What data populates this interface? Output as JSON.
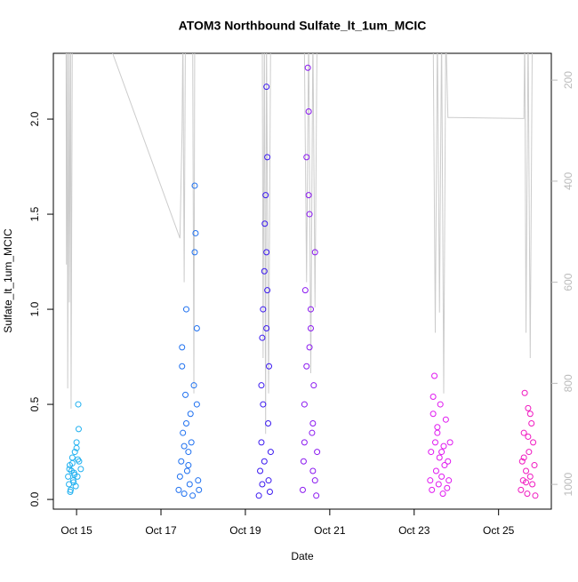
{
  "chart_data": {
    "type": "scatter",
    "title": "ATOM3 Northbound Sulfate_lt_1um_MCIC",
    "x_label": "Date",
    "y_label": "Sulfate_lt_1um_MCIC",
    "xlim": [
      14.45,
      26.25
    ],
    "ylim": [
      -0.051,
      2.346
    ],
    "y2lim": [
      1049,
      147
    ],
    "xticks": [
      {
        "value": 15,
        "label": "Oct 15"
      },
      {
        "value": 17,
        "label": "Oct 17"
      },
      {
        "value": 19,
        "label": "Oct 19"
      },
      {
        "value": 21,
        "label": "Oct 21"
      },
      {
        "value": 23,
        "label": "Oct 23"
      },
      {
        "value": 25,
        "label": "Oct 25"
      }
    ],
    "yticks": [
      {
        "value": 0,
        "label": "0.0"
      },
      {
        "value": 0.5,
        "label": "0.5"
      },
      {
        "value": 1,
        "label": "1.0"
      },
      {
        "value": 1.5,
        "label": "1.5"
      },
      {
        "value": 2,
        "label": "2.0"
      }
    ],
    "y2ticks": [
      200,
      400,
      600,
      800,
      1000
    ],
    "series": [
      {
        "type": "line",
        "axis": "y2",
        "color": "#cccccc",
        "x": [
          14.75,
          14.76,
          14.78,
          14.79,
          14.82,
          14.83,
          14.86,
          14.87,
          14.9,
          15.65,
          17.45,
          17.5,
          17.52,
          17.55,
          17.58,
          17.6,
          17.75,
          17.78,
          17.8,
          17.83,
          19.4,
          19.42,
          19.45,
          19.48,
          19.5,
          19.55,
          19.6,
          20.15,
          20.4,
          20.45,
          20.5,
          20.55,
          20.6,
          20.65,
          20.7,
          23.45,
          23.5,
          23.55,
          23.6,
          23.65,
          23.7,
          23.75,
          23.8,
          25.6,
          25.62,
          25.65,
          25.7,
          25.75,
          25.8
        ],
        "values": [
          100,
          565,
          100,
          810,
          100,
          640,
          100,
          850,
          100,
          100,
          513,
          300,
          100,
          600,
          100,
          100,
          100,
          820,
          100,
          100,
          100,
          750,
          100,
          900,
          100,
          820,
          100,
          100,
          147,
          600,
          100,
          780,
          100,
          650,
          100,
          100,
          700,
          100,
          660,
          100,
          820,
          100,
          274,
          276,
          100,
          700,
          100,
          750,
          100
        ]
      },
      {
        "type": "scatter",
        "color": "#1fb0f0",
        "x": [
          14.8,
          14.82,
          14.84,
          14.86,
          14.88,
          14.9,
          14.92,
          14.94,
          14.96,
          14.98,
          15.0,
          15.02,
          15.04,
          15.06,
          15.1,
          14.85,
          14.9,
          14.95,
          15.0,
          15.05,
          14.83,
          14.93,
          15.03
        ],
        "values": [
          0.12,
          0.08,
          0.18,
          0.05,
          0.15,
          0.22,
          0.1,
          0.14,
          0.25,
          0.07,
          0.3,
          0.12,
          0.5,
          0.2,
          0.16,
          0.04,
          0.19,
          0.13,
          0.27,
          0.37,
          0.16,
          0.09,
          0.21
        ]
      },
      {
        "type": "scatter",
        "color": "#1e70f0",
        "x": [
          17.42,
          17.45,
          17.48,
          17.5,
          17.52,
          17.55,
          17.58,
          17.6,
          17.62,
          17.65,
          17.68,
          17.7,
          17.72,
          17.75,
          17.78,
          17.8,
          17.82,
          17.85,
          17.88,
          17.9,
          17.5,
          17.55,
          17.6,
          17.65,
          17.8,
          17.85
        ],
        "values": [
          0.05,
          0.12,
          0.2,
          0.8,
          0.35,
          0.03,
          0.55,
          1.0,
          0.15,
          0.25,
          0.08,
          0.45,
          0.3,
          0.02,
          0.6,
          1.65,
          1.4,
          0.9,
          0.1,
          0.05,
          0.7,
          0.28,
          0.4,
          0.18,
          1.3,
          0.5
        ]
      },
      {
        "type": "scatter",
        "color": "#3a18f0",
        "x": [
          19.32,
          19.35,
          19.38,
          19.4,
          19.42,
          19.45,
          19.48,
          19.5,
          19.52,
          19.55,
          19.58,
          19.6,
          19.38,
          19.42,
          19.46,
          19.5,
          19.54,
          19.56,
          19.45,
          19.5,
          19.4,
          19.52
        ],
        "values": [
          0.02,
          0.15,
          0.3,
          0.85,
          0.5,
          1.2,
          1.6,
          2.17,
          1.8,
          0.1,
          0.04,
          0.25,
          0.6,
          1.0,
          1.45,
          1.3,
          0.4,
          0.7,
          0.2,
          0.9,
          0.08,
          1.1
        ]
      },
      {
        "type": "scatter",
        "color": "#8a18f0",
        "x": [
          20.36,
          20.38,
          20.4,
          20.42,
          20.45,
          20.48,
          20.5,
          20.52,
          20.55,
          20.58,
          20.6,
          20.62,
          20.65,
          20.68,
          20.7,
          20.45,
          20.5,
          20.55,
          20.6,
          20.65,
          20.4,
          20.52
        ],
        "values": [
          0.05,
          0.2,
          0.5,
          1.1,
          1.8,
          2.27,
          2.04,
          1.5,
          0.9,
          0.35,
          0.15,
          0.6,
          1.3,
          0.02,
          0.25,
          0.7,
          1.6,
          1.0,
          0.4,
          0.1,
          0.3,
          0.8
        ]
      },
      {
        "type": "scatter",
        "color": "#e018f0",
        "x": [
          23.38,
          23.4,
          23.42,
          23.45,
          23.48,
          23.5,
          23.52,
          23.55,
          23.58,
          23.6,
          23.62,
          23.65,
          23.68,
          23.7,
          23.72,
          23.75,
          23.78,
          23.8,
          23.82,
          23.85,
          23.45,
          23.55,
          23.65
        ],
        "values": [
          0.1,
          0.25,
          0.05,
          0.45,
          0.65,
          0.3,
          0.15,
          0.38,
          0.08,
          0.22,
          0.5,
          0.12,
          0.03,
          0.28,
          0.18,
          0.42,
          0.06,
          0.2,
          0.1,
          0.3,
          0.54,
          0.35,
          0.25
        ]
      },
      {
        "type": "scatter",
        "color": "#f018c0",
        "x": [
          25.53,
          25.56,
          25.58,
          25.6,
          25.62,
          25.65,
          25.68,
          25.7,
          25.72,
          25.75,
          25.78,
          25.8,
          25.82,
          25.85,
          25.87,
          25.6,
          25.7,
          25.75,
          25.65
        ],
        "values": [
          0.05,
          0.2,
          0.1,
          0.35,
          0.56,
          0.15,
          0.03,
          0.48,
          0.25,
          0.12,
          0.4,
          0.08,
          0.3,
          0.18,
          0.02,
          0.22,
          0.33,
          0.45,
          0.09
        ]
      }
    ]
  }
}
